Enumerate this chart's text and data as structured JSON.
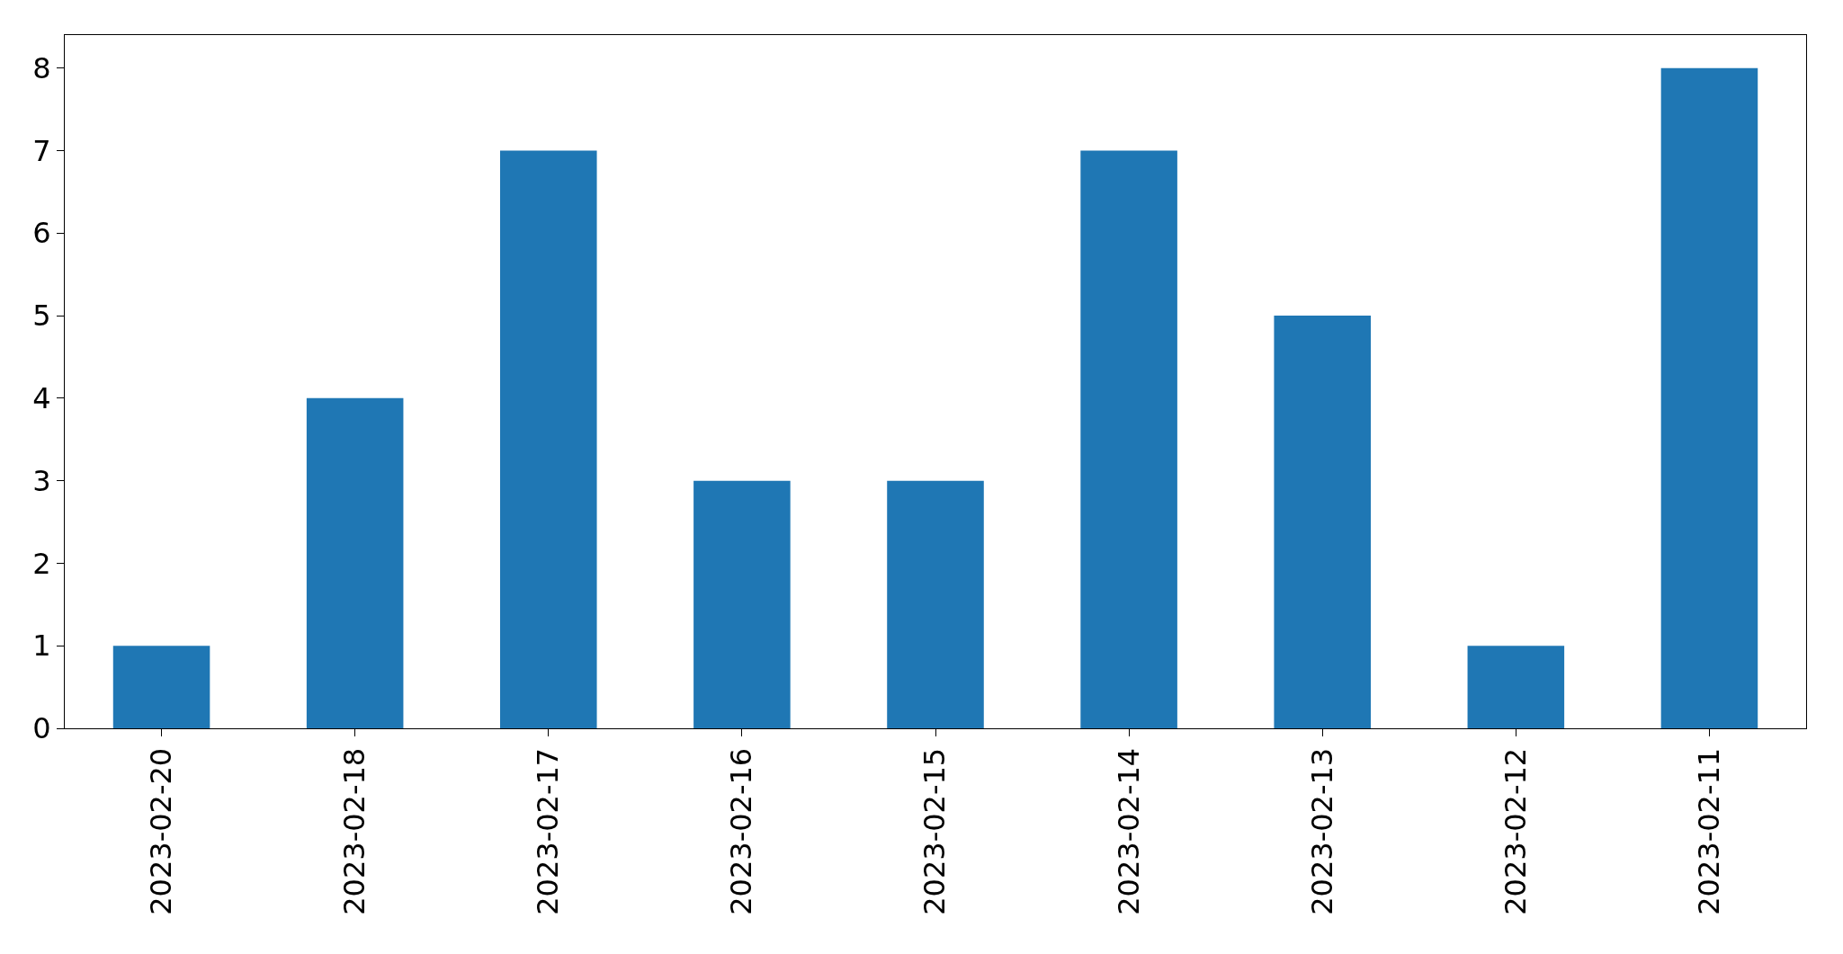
{
  "chart_data": {
    "type": "bar",
    "categories": [
      "2023-02-20",
      "2023-02-18",
      "2023-02-17",
      "2023-02-16",
      "2023-02-15",
      "2023-02-14",
      "2023-02-13",
      "2023-02-12",
      "2023-02-11"
    ],
    "values": [
      1,
      4,
      7,
      3,
      3,
      7,
      5,
      1,
      8
    ],
    "color": "#1f77b4",
    "ylim": [
      0,
      8.4
    ],
    "yticks": [
      0,
      1,
      2,
      3,
      4,
      5,
      6,
      7,
      8
    ],
    "grid": false
  }
}
